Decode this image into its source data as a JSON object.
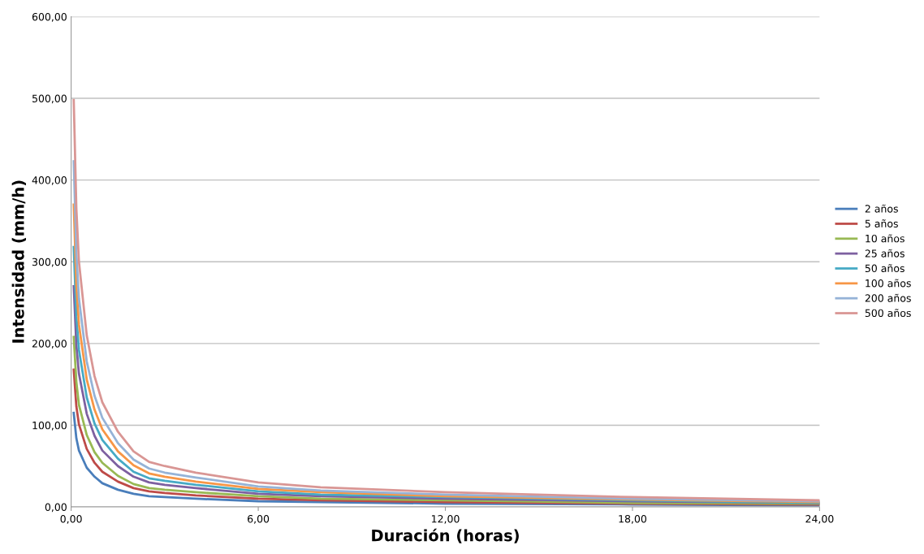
{
  "chart_data": {
    "type": "line",
    "xlabel": "Duración (horas)",
    "ylabel": "Intensidad (mm/h)",
    "x": [
      0.083,
      0.167,
      0.25,
      0.5,
      0.75,
      1,
      1.5,
      2,
      2.5,
      3,
      4,
      6,
      8,
      12,
      18,
      24
    ],
    "xlim": [
      0,
      24
    ],
    "ylim": [
      0,
      600
    ],
    "xticks": [
      {
        "value": 0,
        "label": "0,00"
      },
      {
        "value": 6,
        "label": "6,00"
      },
      {
        "value": 12,
        "label": "12,00"
      },
      {
        "value": 18,
        "label": "18,00"
      },
      {
        "value": 24,
        "label": "24,00"
      }
    ],
    "yticks": [
      {
        "value": 0,
        "label": "0,00"
      },
      {
        "value": 100,
        "label": "100,00"
      },
      {
        "value": 200,
        "label": "200,00"
      },
      {
        "value": 300,
        "label": "300,00"
      },
      {
        "value": 400,
        "label": "400,00"
      },
      {
        "value": 500,
        "label": "500,00"
      },
      {
        "value": 600,
        "label": "600,00"
      }
    ],
    "grid": "y",
    "legend": "right",
    "marker": "none",
    "line_style": "solid",
    "series": [
      {
        "name": "2 años",
        "color": "#4a7ebb",
        "values": [
          115,
          84,
          69,
          48,
          37,
          29,
          21,
          16,
          13,
          12,
          10,
          7,
          6,
          4,
          3,
          2
        ]
      },
      {
        "name": "5 años",
        "color": "#be4b48",
        "values": [
          168,
          123,
          101,
          71,
          54,
          43,
          31,
          23,
          19,
          17,
          14,
          10,
          8,
          6,
          4,
          3
        ]
      },
      {
        "name": "10 años",
        "color": "#98b954",
        "values": [
          208,
          153,
          125,
          88,
          67,
          54,
          38,
          28,
          23,
          21,
          18,
          13,
          10,
          8,
          5,
          4
        ]
      },
      {
        "name": "25 años",
        "color": "#7d60a0",
        "values": [
          270,
          198,
          163,
          114,
          87,
          69,
          50,
          37,
          30,
          27,
          23,
          16,
          13,
          10,
          7,
          5
        ]
      },
      {
        "name": "50 años",
        "color": "#46aac5",
        "values": [
          318,
          233,
          192,
          134,
          102,
          82,
          59,
          43,
          35,
          32,
          27,
          19,
          15,
          12,
          8,
          5
        ]
      },
      {
        "name": "100 años",
        "color": "#f79646",
        "values": [
          370,
          271,
          223,
          156,
          119,
          95,
          68,
          51,
          41,
          37,
          31,
          22,
          18,
          13,
          9,
          6
        ]
      },
      {
        "name": "200 años",
        "color": "#95b3d7",
        "values": [
          423,
          310,
          255,
          178,
          136,
          109,
          78,
          58,
          47,
          42,
          36,
          25,
          20,
          15,
          10,
          7
        ]
      },
      {
        "name": "500 años",
        "color": "#d99694",
        "values": [
          498,
          365,
          300,
          210,
          160,
          128,
          92,
          68,
          55,
          50,
          42,
          30,
          24,
          18,
          12,
          8
        ]
      }
    ]
  }
}
